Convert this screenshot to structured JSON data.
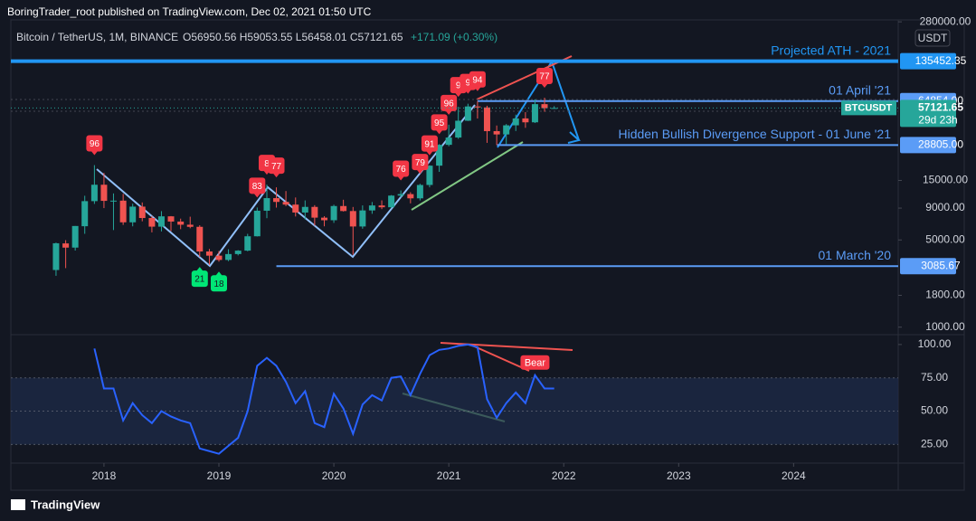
{
  "header": {
    "publisher": "BoringTrader_root published on TradingView.com, Dec 02, 2021 01:50 UTC",
    "brand": "TradingView"
  },
  "chart_data": [
    {
      "type": "candlestick",
      "title": "Bitcoin / TetherUS, 1M, BINANCE",
      "ohlc_text": "O56950.56 H59053.55 L56458.01 C57121.65",
      "change_text": "+171.09 (+0.30%)",
      "currency": "USDT",
      "log_scale": true,
      "x": [
        2017.583,
        2017.667,
        2017.75,
        2017.833,
        2017.917,
        2018,
        2018.083,
        2018.167,
        2018.25,
        2018.333,
        2018.417,
        2018.5,
        2018.583,
        2018.667,
        2018.75,
        2018.833,
        2018.917,
        2019,
        2019.083,
        2019.167,
        2019.25,
        2019.333,
        2019.417,
        2019.5,
        2019.583,
        2019.667,
        2019.75,
        2019.833,
        2019.917,
        2020,
        2020.083,
        2020.167,
        2020.25,
        2020.333,
        2020.417,
        2020.5,
        2020.583,
        2020.667,
        2020.75,
        2020.833,
        2020.917,
        2021,
        2021.083,
        2021.167,
        2021.25,
        2021.333,
        2021.417,
        2021.5,
        2021.583,
        2021.667,
        2021.75,
        2021.833,
        2021.917
      ],
      "open": [
        2871,
        4689,
        4341,
        6440,
        10230,
        13850,
        10285,
        10326,
        6923,
        9246,
        7494,
        6390,
        7730,
        7020,
        6625,
        6371,
        4041,
        3742,
        3457,
        3854,
        4105,
        5350,
        8574,
        10817,
        10086,
        9600,
        8293,
        9199,
        7546,
        7193,
        9350,
        8523,
        6410,
        8620,
        9448,
        9138,
        11335,
        11650,
        10776,
        13791,
        19695,
        28923,
        33092,
        45135,
        58740,
        57694,
        37254,
        35045,
        41462,
        47100,
        43824,
        61300,
        56950.56
      ],
      "high": [
        4760,
        4980,
        6470,
        11300,
        19891,
        17250,
        11800,
        11700,
        9765,
        9990,
        7782,
        8507,
        7769,
        7410,
        7680,
        6557,
        4237,
        4070,
        4210,
        4140,
        5600,
        9100,
        13880,
        13200,
        12330,
        10950,
        10370,
        9500,
        7750,
        9580,
        10500,
        9190,
        9460,
        10070,
        10380,
        11444,
        12470,
        12070,
        14100,
        19860,
        29300,
        41950,
        58350,
        61780,
        64854,
        59500,
        41330,
        42450,
        50500,
        52920,
        67000,
        69000,
        59053.55
      ],
      "low": [
        2580,
        2972,
        4110,
        5600,
        9722,
        9000,
        6000,
        6600,
        6430,
        7051,
        5750,
        5850,
        5880,
        6100,
        6205,
        3652,
        3156,
        3350,
        3380,
        3760,
        4056,
        5330,
        7470,
        9080,
        9330,
        7710,
        7300,
        6515,
        6430,
        6850,
        8450,
        3800,
        6150,
        8100,
        8830,
        8970,
        10950,
        9825,
        10370,
        13200,
        17570,
        28130,
        32290,
        44950,
        47000,
        30000,
        28805,
        29280,
        37330,
        39600,
        43290,
        53256,
        56458.01
      ],
      "close": [
        4703,
        4339,
        6468,
        10233,
        13850,
        10285,
        10326,
        6923,
        9246,
        7494,
        6390,
        7730,
        7020,
        6625,
        6371,
        4041,
        3742,
        3457,
        3854,
        4105,
        5350,
        8574,
        10817,
        10086,
        9600,
        8293,
        9199,
        7546,
        7193,
        9350,
        8523,
        6410,
        8620,
        9448,
        9138,
        11335,
        11650,
        10776,
        13791,
        19695,
        28923,
        33092,
        45135,
        58740,
        57694,
        37254,
        35045,
        41462,
        47100,
        43824,
        61300,
        56950,
        57121.65
      ],
      "up_color": "#26a69a",
      "down_color": "#ef5350",
      "xlim": [
        2017.19,
        2024.91
      ],
      "xticks": [
        2018,
        2019,
        2020,
        2021,
        2022,
        2023,
        2024
      ],
      "ylim": [
        900,
        300000
      ],
      "yticks": [
        {
          "value": 1000,
          "label": "1000.00"
        },
        {
          "value": 1800,
          "label": "1800.00"
        },
        {
          "value": 5000,
          "label": "5000.00"
        },
        {
          "value": 9000,
          "label": "9000.00"
        },
        {
          "value": 15000,
          "label": "15000.00"
        },
        {
          "value": 280000,
          "label": "280000.00"
        }
      ],
      "levels": [
        {
          "price": 135452.35,
          "from": 2017.19,
          "text": "Projected ATH - 2021",
          "color": "#2196f3"
        },
        {
          "price": {
            "value": 64854,
            "label": "64854.00"
          },
          "from": 2021.25,
          "text": "01 April '21",
          "color": "#5b9cf6"
        },
        {
          "price": {
            "value": 28805,
            "label": "28805.00"
          },
          "from": 2021.42,
          "text": "Hidden Bullish Divergence Support - 01 June '21",
          "color": "#5b9cf6"
        },
        {
          "price": 3085.67,
          "from": 2019.5,
          "text": "01 March '20",
          "color": "#5b9cf6"
        }
      ],
      "last_price": 57121.65,
      "symbol": "BTCUSDT",
      "countdown": "29d 23h",
      "signals": [
        {
          "label": "96",
          "x": 2017.917,
          "side": "above",
          "color": "#f23645"
        },
        {
          "label": "83",
          "x": 2019.333,
          "side": "above",
          "color": "#f23645"
        },
        {
          "label": "8",
          "x": 2019.417,
          "side": "above",
          "color": "#f23645"
        },
        {
          "label": "77",
          "x": 2019.5,
          "side": "above",
          "color": "#f23645"
        },
        {
          "label": "76",
          "x": 2020.583,
          "side": "above",
          "color": "#f23645"
        },
        {
          "label": "79",
          "x": 2020.75,
          "side": "above",
          "color": "#f23645"
        },
        {
          "label": "91",
          "x": 2020.833,
          "side": "above",
          "color": "#f23645"
        },
        {
          "label": "95",
          "x": 2020.917,
          "side": "above",
          "color": "#f23645"
        },
        {
          "label": "96",
          "x": 2021,
          "side": "above",
          "color": "#f23645"
        },
        {
          "label": "9",
          "x": 2021.083,
          "side": "above",
          "color": "#f23645"
        },
        {
          "label": "9",
          "x": 2021.167,
          "side": "above",
          "color": "#f23645"
        },
        {
          "label": "94",
          "x": 2021.25,
          "side": "above",
          "color": "#f23645"
        },
        {
          "label": "77",
          "x": 2021.833,
          "side": "above",
          "color": "#f23645"
        },
        {
          "label": "21",
          "x": 2018.833,
          "side": "below",
          "color": "#00e676"
        },
        {
          "label": "18",
          "x": 2019,
          "side": "below",
          "color": "#00e676"
        }
      ]
    },
    {
      "type": "line",
      "x": [
        2017.583,
        2017.667,
        2017.75,
        2017.833,
        2017.917,
        2018,
        2018.083,
        2018.167,
        2018.25,
        2018.333,
        2018.417,
        2018.5,
        2018.583,
        2018.667,
        2018.75,
        2018.833,
        2018.917,
        2019,
        2019.083,
        2019.167,
        2019.25,
        2019.333,
        2019.417,
        2019.5,
        2019.583,
        2019.667,
        2019.75,
        2019.833,
        2019.917,
        2020,
        2020.083,
        2020.167,
        2020.25,
        2020.333,
        2020.417,
        2020.5,
        2020.583,
        2020.667,
        2020.75,
        2020.833,
        2020.917,
        2021,
        2021.083,
        2021.167,
        2021.25,
        2021.333,
        2021.417,
        2021.5,
        2021.583,
        2021.667,
        2021.75,
        2021.833,
        2021.917
      ],
      "values": [
        null,
        null,
        null,
        null,
        97,
        67,
        67,
        43,
        56,
        47,
        41,
        50,
        46,
        43,
        41,
        22,
        20,
        18,
        24,
        30,
        50,
        84,
        90,
        84,
        72,
        56,
        65,
        41,
        38,
        63,
        52,
        33,
        55,
        62,
        58,
        75,
        76,
        62,
        78,
        92,
        96,
        97,
        99,
        100,
        98,
        59,
        45,
        56,
        64,
        56,
        77,
        67,
        67
      ],
      "color": "#2962ff",
      "xlim": [
        2017.19,
        2024.91
      ],
      "ylim": [
        11,
        104
      ],
      "yticks": [
        {
          "value": 25,
          "label": "25.00"
        },
        {
          "value": 50,
          "label": "50.00"
        },
        {
          "value": 75,
          "label": "75.00"
        },
        {
          "value": 100,
          "label": "100.00"
        }
      ],
      "band": [
        25,
        75
      ],
      "signal": {
        "label": "Bear",
        "x": 2021.75
      }
    }
  ]
}
